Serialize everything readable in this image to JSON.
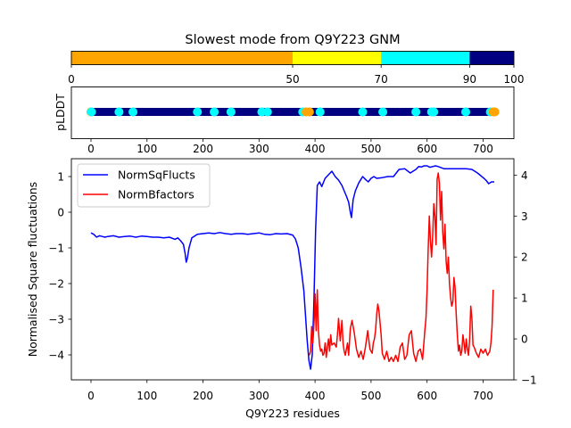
{
  "chart_data": [
    {
      "type": "colorbar",
      "title": "Slowest mode from Q9Y223 GNM",
      "range": [
        0,
        100
      ],
      "segments": [
        {
          "from": 0,
          "to": 50,
          "color": "#ffa500"
        },
        {
          "from": 50,
          "to": 70,
          "color": "#ffff00"
        },
        {
          "from": 70,
          "to": 90,
          "color": "#00ffff"
        },
        {
          "from": 90,
          "to": 100,
          "color": "#000080"
        }
      ],
      "ticks": [
        "0",
        "50",
        "70",
        "90",
        "100"
      ]
    },
    {
      "type": "scatter",
      "ylabel": "pLDDT",
      "xlim": [
        -35,
        755
      ],
      "xticks": [
        "0",
        "100",
        "200",
        "300",
        "400",
        "500",
        "600",
        "700"
      ],
      "n_residues": 722,
      "base_color": "#000080",
      "markers": [
        {
          "x": 0,
          "color": "#ffa500"
        },
        {
          "x": 1,
          "color": "#00ffff"
        },
        {
          "x": 50,
          "color": "#00ffff"
        },
        {
          "x": 75,
          "color": "#00ffff"
        },
        {
          "x": 190,
          "color": "#00ffff"
        },
        {
          "x": 220,
          "color": "#00ffff"
        },
        {
          "x": 250,
          "color": "#00ffff"
        },
        {
          "x": 305,
          "color": "#00ffff"
        },
        {
          "x": 315,
          "color": "#00ffff"
        },
        {
          "x": 378,
          "color": "#00ffff"
        },
        {
          "x": 384,
          "color": "#ffa500"
        },
        {
          "x": 390,
          "color": "#ffa500"
        },
        {
          "x": 409,
          "color": "#00ffff"
        },
        {
          "x": 485,
          "color": "#00ffff"
        },
        {
          "x": 521,
          "color": "#00ffff"
        },
        {
          "x": 580,
          "color": "#00ffff"
        },
        {
          "x": 608,
          "color": "#00ffff"
        },
        {
          "x": 612,
          "color": "#00ffff"
        },
        {
          "x": 669,
          "color": "#00ffff"
        },
        {
          "x": 713,
          "color": "#00ffff"
        },
        {
          "x": 718,
          "color": "#ffa500"
        },
        {
          "x": 721,
          "color": "#ffa500"
        }
      ]
    },
    {
      "type": "line",
      "xlabel": "Q9Y223 residues",
      "ylabel": "Normalised Square fluctuations",
      "xlim": [
        -35,
        755
      ],
      "ylim": [
        -4.7,
        1.5
      ],
      "y2lim": [
        -1.0,
        4.4
      ],
      "xticks": [
        "0",
        "100",
        "200",
        "300",
        "400",
        "500",
        "600",
        "700"
      ],
      "yticks": [
        "1",
        "0",
        "−1",
        "−2",
        "−3",
        "−4"
      ],
      "y2ticks": [
        "4",
        "3",
        "2",
        "1",
        "0",
        "−1"
      ],
      "legend_position": "top-left",
      "series": [
        {
          "name": "NormSqFlucts",
          "color": "#0000ff",
          "axis": "left",
          "x": [
            0,
            5,
            10,
            15,
            20,
            25,
            30,
            40,
            50,
            60,
            70,
            80,
            90,
            100,
            110,
            120,
            130,
            140,
            150,
            155,
            160,
            165,
            168,
            170,
            172,
            175,
            180,
            190,
            200,
            210,
            220,
            230,
            240,
            250,
            260,
            270,
            280,
            290,
            300,
            310,
            320,
            330,
            340,
            350,
            360,
            365,
            370,
            375,
            380,
            383,
            386,
            389,
            392,
            395,
            398,
            401,
            404,
            408,
            412,
            418,
            424,
            430,
            436,
            442,
            448,
            452,
            456,
            460,
            463,
            465,
            468,
            472,
            478,
            485,
            490,
            495,
            500,
            505,
            510,
            520,
            530,
            540,
            550,
            560,
            570,
            580,
            585,
            590,
            595,
            600,
            605,
            610,
            615,
            620,
            630,
            640,
            650,
            660,
            670,
            680,
            690,
            700,
            705,
            710,
            715,
            720
          ],
          "y": [
            -0.58,
            -0.62,
            -0.7,
            -0.66,
            -0.68,
            -0.7,
            -0.68,
            -0.66,
            -0.7,
            -0.68,
            -0.67,
            -0.7,
            -0.67,
            -0.68,
            -0.7,
            -0.7,
            -0.72,
            -0.7,
            -0.76,
            -0.72,
            -0.8,
            -0.9,
            -1.15,
            -1.4,
            -1.3,
            -1.0,
            -0.72,
            -0.62,
            -0.6,
            -0.58,
            -0.6,
            -0.57,
            -0.6,
            -0.62,
            -0.6,
            -0.6,
            -0.62,
            -0.6,
            -0.58,
            -0.62,
            -0.63,
            -0.6,
            -0.61,
            -0.6,
            -0.64,
            -0.75,
            -1.0,
            -1.55,
            -2.2,
            -2.9,
            -3.6,
            -4.15,
            -4.4,
            -4.0,
            -2.5,
            -0.5,
            0.75,
            0.85,
            0.72,
            0.95,
            1.05,
            1.15,
            1.0,
            0.9,
            0.75,
            0.6,
            0.45,
            0.28,
            0.0,
            -0.15,
            0.35,
            0.6,
            0.82,
            1.0,
            0.92,
            0.85,
            0.95,
            1.0,
            0.95,
            0.97,
            1.0,
            1.0,
            1.2,
            1.22,
            1.1,
            1.2,
            1.28,
            1.27,
            1.3,
            1.3,
            1.26,
            1.28,
            1.3,
            1.28,
            1.22,
            1.22,
            1.22,
            1.22,
            1.22,
            1.2,
            1.1,
            0.97,
            0.9,
            0.8,
            0.85,
            0.85
          ]
        },
        {
          "name": "NormBfactors",
          "color": "#ff0000",
          "axis": "right",
          "x": [
            390,
            392,
            394,
            396,
            397,
            399,
            400,
            401,
            402,
            404,
            406,
            408,
            410,
            412,
            414,
            416,
            418,
            420,
            422,
            424,
            426,
            428,
            430,
            434,
            438,
            440,
            442,
            445,
            448,
            450,
            452,
            454,
            456,
            458,
            460,
            463,
            466,
            470,
            474,
            478,
            482,
            486,
            490,
            494,
            498,
            502,
            504,
            506,
            508,
            510,
            512,
            514,
            516,
            518,
            520,
            524,
            528,
            532,
            536,
            540,
            544,
            548,
            552,
            556,
            560,
            564,
            568,
            572,
            576,
            580,
            584,
            588,
            592,
            596,
            598,
            600,
            602,
            604,
            606,
            608,
            610,
            612,
            614,
            616,
            618,
            620,
            622,
            624,
            626,
            628,
            630,
            632,
            634,
            636,
            638,
            640,
            642,
            644,
            646,
            648,
            650,
            652,
            654,
            656,
            658,
            660,
            662,
            664,
            666,
            668,
            670,
            672,
            674,
            676,
            678,
            680,
            682,
            684,
            688,
            692,
            696,
            700,
            704,
            708,
            712,
            714,
            716,
            718
          ],
          "y": [
            -0.4,
            -0.3,
            0.3,
            -0.1,
            0.1,
            0.6,
            1.1,
            0.7,
            0.2,
            1.2,
            0.2,
            -0.15,
            -0.3,
            -0.25,
            -0.4,
            -0.35,
            -0.1,
            -0.45,
            -0.2,
            0.0,
            -0.3,
            0.1,
            -0.15,
            -0.1,
            -0.2,
            0.1,
            0.5,
            -0.05,
            0.45,
            -0.1,
            -0.3,
            -0.4,
            -0.25,
            -0.1,
            -0.4,
            0.25,
            0.45,
            0.15,
            -0.25,
            -0.45,
            -0.3,
            -0.5,
            -0.2,
            0.2,
            -0.25,
            -0.35,
            -0.1,
            0.0,
            0.2,
            0.6,
            0.85,
            0.7,
            0.4,
            0.1,
            -0.35,
            -0.5,
            -0.3,
            -0.55,
            -0.45,
            -0.55,
            -0.4,
            -0.55,
            -0.2,
            -0.1,
            -0.5,
            -0.4,
            0.1,
            0.2,
            -0.35,
            -0.55,
            -0.3,
            -0.25,
            -0.5,
            0.2,
            0.5,
            1.2,
            2.2,
            3.0,
            2.4,
            2.0,
            2.5,
            3.3,
            3.0,
            2.3,
            3.9,
            4.05,
            3.8,
            2.9,
            3.6,
            2.6,
            2.2,
            2.8,
            1.9,
            1.6,
            2.0,
            1.35,
            1.0,
            0.8,
            0.9,
            1.5,
            1.25,
            0.6,
            0.1,
            -0.3,
            -0.15,
            -0.4,
            -0.3,
            0.1,
            -0.1,
            -0.35,
            0.0,
            -0.25,
            -0.4,
            0.0,
            0.8,
            0.5,
            -0.15,
            -0.2,
            -0.35,
            -0.45,
            -0.25,
            -0.35,
            -0.25,
            -0.4,
            -0.3,
            -0.1,
            0.3,
            1.2
          ]
        }
      ]
    }
  ]
}
